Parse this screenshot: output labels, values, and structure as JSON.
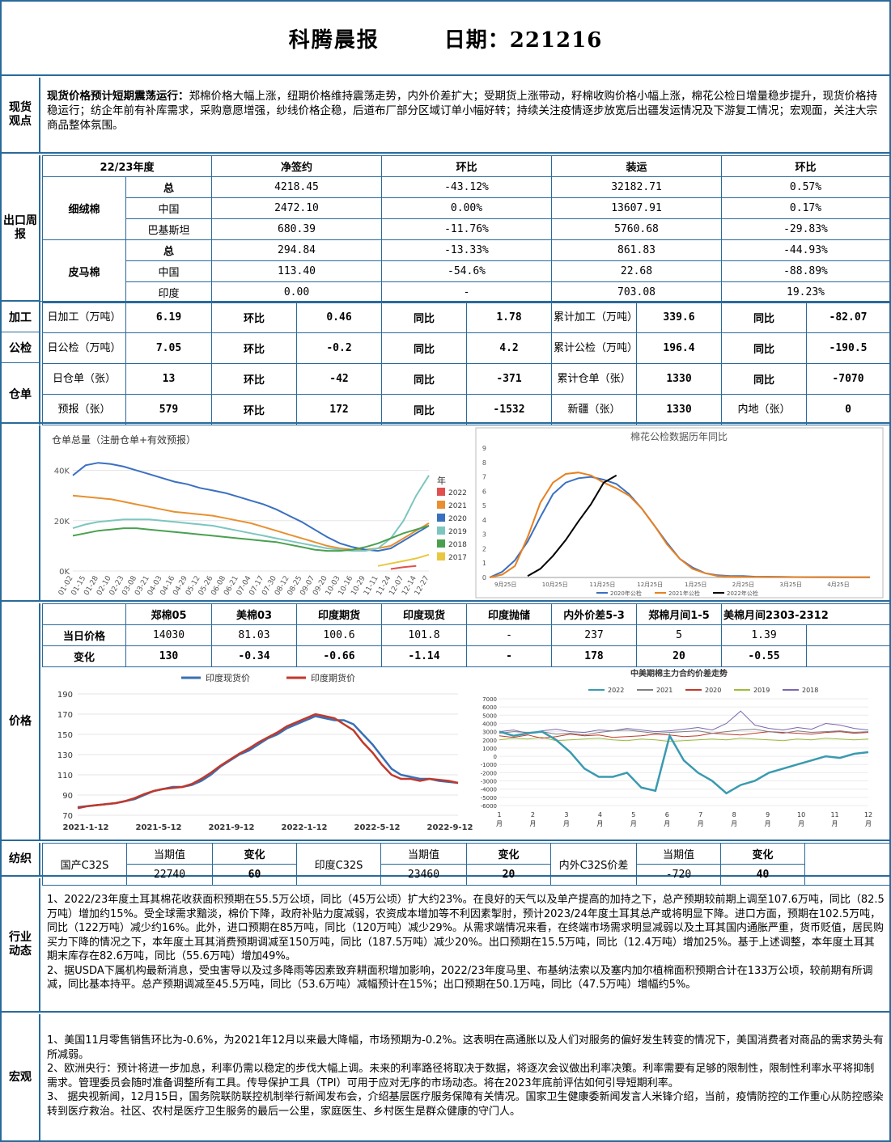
{
  "header": {
    "title": "科腾晨报",
    "date": "日期：221216"
  },
  "viewpoint": {
    "label": "现货观点",
    "lead": "现货价格预计短期震荡运行：",
    "body": "郑棉价格大幅上涨，纽期价格维持震荡走势，内外价差扩大；受期货上涨带动，籽棉收购价格小幅上涨，棉花公检日增量稳步提升，现货价格持稳运行；纺企年前有补库需求，采购意愿增强，纱线价格企稳，后道布厂部分区域订单小幅好转；持续关注疫情逐步放宽后出疆发运情况及下游复工情况；宏观面，关注大宗商品整体氛围。"
  },
  "export": {
    "label": "出口周报",
    "headers": [
      "22/23年度",
      "净签约",
      "环比",
      "装运",
      "环比"
    ],
    "groups": [
      {
        "name": "细绒棉",
        "rows": [
          {
            "sub": "总",
            "net": "4218.45",
            "net_mom": "-43.12%",
            "ship": "32182.71",
            "ship_mom": "0.57%"
          },
          {
            "sub": "中国",
            "net": "2472.10",
            "net_mom": "0.00%",
            "ship": "13607.91",
            "ship_mom": "0.17%"
          },
          {
            "sub": "巴基斯坦",
            "net": "680.39",
            "net_mom": "-11.76%",
            "ship": "5760.68",
            "ship_mom": "-29.83%"
          }
        ]
      },
      {
        "name": "皮马棉",
        "rows": [
          {
            "sub": "总",
            "net": "294.84",
            "net_mom": "-13.33%",
            "ship": "861.83",
            "ship_mom": "-44.93%"
          },
          {
            "sub": "中国",
            "net": "113.40",
            "net_mom": "-54.6%",
            "ship": "22.68",
            "ship_mom": "-88.89%"
          },
          {
            "sub": "印度",
            "net": "0.00",
            "net_mom": "-",
            "ship": "703.08",
            "ship_mom": "19.23%"
          }
        ]
      }
    ]
  },
  "process": {
    "label": "加工",
    "c1": "日加工（万吨）",
    "v1": "6.19",
    "c2": "环比",
    "v2": "0.46",
    "c3": "同比",
    "v3": "1.78",
    "c4": "累计加工（万吨）",
    "v4": "339.6",
    "c5": "同比",
    "v5": "-82.07"
  },
  "inspect": {
    "label": "公检",
    "c1": "日公检（万吨）",
    "v1": "7.05",
    "c2": "环比",
    "v2": "-0.2",
    "c3": "同比",
    "v3": "4.2",
    "c4": "累计公检（万吨）",
    "v4": "196.4",
    "c5": "同比",
    "v5": "-190.5"
  },
  "warehouse": {
    "label": "仓单",
    "r1": {
      "c1": "日仓单（张）",
      "v1": "13",
      "c2": "环比",
      "v2": "-42",
      "c3": "同比",
      "v3": "-371",
      "c4": "累计仓单（张）",
      "v4": "1330",
      "c5": "同比",
      "v5": "-7070"
    },
    "r2": {
      "c1": "预报（张）",
      "v1": "579",
      "c2": "环比",
      "v2": "172",
      "c3": "同比",
      "v3": "-1532",
      "c4": "新疆（张）",
      "v4": "1330",
      "c5": "内地（张）",
      "v5": "0"
    }
  },
  "price": {
    "label": "价格",
    "headers": [
      "",
      "郑棉05",
      "美棉03",
      "印度期货",
      "印度现货",
      "印度抛储",
      "内外价差5-3",
      "郑棉月间1-5",
      "美棉月间2303-2312"
    ],
    "today_label": "当日价格",
    "today": [
      "14030",
      "81.03",
      "100.6",
      "101.8",
      "-",
      "237",
      "5",
      "1.39"
    ],
    "change_label": "变化",
    "change": [
      "130",
      "-0.34",
      "-0.66",
      "-1.14",
      "-",
      "178",
      "20",
      "-0.55"
    ]
  },
  "yarn": {
    "label": "纺织",
    "a_name": "国产C32S",
    "a_cur_h": "当期值",
    "a_chg_h": "变化",
    "a_cur": "22740",
    "a_chg": "60",
    "b_name": "印度C32S",
    "b_cur_h": "当期值",
    "b_chg_h": "变化",
    "b_cur": "23460",
    "b_chg": "20",
    "c_name": "内外C32S价差",
    "c_cur_h": "当期值",
    "c_chg_h": "变化",
    "c_cur": "-720",
    "c_chg": "40"
  },
  "industry": {
    "label": "行业动态",
    "p1": "1、2022/23年度土耳其棉花收获面积预期在55.5万公顷，同比（45万公顷）扩大约23%。在良好的天气以及单产提高的加持之下，总产预期较前期上调至107.6万吨，同比（82.5万吨）增加约15%。受全球需求黯淡，棉价下降，政府补贴力度减弱，农资成本增加等不利因素掣肘，预计2023/24年度土耳其总产或将明显下降。进口方面，预期在102.5万吨，同比（122万吨）减少约16%。此外，进口预期在85万吨，同比（120万吨）减少29%。从需求端情况来看，在终端市场需求明显减弱以及土耳其国内通胀严重，货币贬值，居民购买力下降的情况之下，本年度土耳其消费预期调减至150万吨，同比（187.5万吨）减少20%。出口预期在15.5万吨，同比（12.4万吨）增加25%。基于上述调整，本年度土耳其期末库存在82.6万吨，同比（55.6万吨）增加49%。",
    "p2": "2、据USDA下属机构最新消息，受虫害导以及过多降雨等因素致弃耕面积增加影响，2022/23年度马里、布基纳法索以及塞内加尔植棉面积预期合计在133万公顷，较前期有所调减，同比基本持平。总产预期调减至45.5万吨，同比（53.6万吨）减幅预计在15%；出口预期在50.1万吨，同比（47.5万吨）增幅约5%。"
  },
  "macro": {
    "label": "宏观",
    "p1": "1、美国11月零售销售环比为-0.6%，为2021年12月以来最大降幅，市场预期为-0.2%。这表明在高通胀以及人们对服务的偏好发生转变的情况下，美国消费者对商品的需求势头有所减弱。",
    "p2": "2、欧洲央行：预计将进一步加息，利率仍需以稳定的步伐大幅上调。未来的利率路径将取决于数据，将逐次会议做出利率决策。利率需要有足够的限制性，限制性利率水平将抑制需求。管理委员会随时准备调整所有工具。传导保护工具（TPI）可用于应对无序的市场动态。将在2023年底前评估如何引导短期利率。",
    "p3": "3、 据央视新闻，12月15日，国务院联防联控机制举行新闻发布会，介绍基层医疗服务保障有关情况。国家卫生健康委新闻发言人米锋介绍，当前，疫情防控的工作重心从防控感染转到医疗救治。社区、农村是医疗卫生服务的最后一公里，家庭医生、乡村医生是群众健康的守门人。"
  },
  "chart_data": [
    {
      "type": "line",
      "title": "仓单总量（注册仓单+有效预报）",
      "legend_title": "年",
      "categories": [
        "01-02",
        "01-15",
        "01-28",
        "02-10",
        "02-23",
        "03-08",
        "03-21",
        "04-03",
        "04-16",
        "04-29",
        "05-12",
        "05-26",
        "06-08",
        "06-21",
        "07-04",
        "07-17",
        "07-30",
        "08-12",
        "08-25",
        "09-07",
        "09-20",
        "10-03",
        "10-16",
        "10-29",
        "11-11",
        "11-24",
        "12-07",
        "12-14",
        "12-27"
      ],
      "ytick_labels": [
        "0K",
        "20K",
        "40K"
      ],
      "ylim": [
        0,
        45000
      ],
      "colors": [
        "#e05050",
        "#e89030",
        "#3a70c0",
        "#7cc6c0",
        "#4aa050",
        "#e8c840"
      ],
      "series": [
        {
          "name": "2022",
          "values": [
            null,
            null,
            null,
            null,
            null,
            null,
            null,
            null,
            null,
            null,
            null,
            null,
            null,
            null,
            null,
            null,
            null,
            null,
            null,
            null,
            null,
            null,
            null,
            null,
            null,
            800,
            1500,
            2000,
            null
          ]
        },
        {
          "name": "2021",
          "values": [
            30000,
            29500,
            29000,
            28500,
            27500,
            26500,
            25500,
            24500,
            23500,
            23000,
            22500,
            22000,
            21000,
            20000,
            19000,
            17500,
            16000,
            14500,
            13000,
            11500,
            10000,
            9000,
            8500,
            8500,
            9000,
            10000,
            13000,
            16000,
            19000
          ]
        },
        {
          "name": "2020",
          "values": [
            38000,
            42000,
            43000,
            42500,
            41500,
            40000,
            38500,
            37000,
            35500,
            34500,
            33000,
            32000,
            31000,
            29500,
            28000,
            26500,
            24500,
            22000,
            19500,
            16500,
            13500,
            11000,
            9500,
            8500,
            8000,
            9000,
            12000,
            15000,
            18000
          ]
        },
        {
          "name": "2019",
          "values": [
            17000,
            18500,
            19500,
            20000,
            20500,
            20500,
            20500,
            20000,
            19500,
            19000,
            18500,
            18000,
            17000,
            16000,
            15000,
            14000,
            13000,
            12000,
            11000,
            10000,
            9000,
            8500,
            8000,
            8000,
            9000,
            13000,
            20000,
            30000,
            38000
          ]
        },
        {
          "name": "2018",
          "values": [
            14000,
            15000,
            16000,
            16500,
            17000,
            17000,
            16500,
            16000,
            15500,
            15000,
            14500,
            14000,
            13500,
            13000,
            12500,
            12000,
            11500,
            10500,
            9500,
            8500,
            8000,
            8000,
            8500,
            9500,
            11000,
            13000,
            15000,
            16500,
            18000
          ]
        },
        {
          "name": "2017",
          "values": [
            null,
            null,
            null,
            null,
            null,
            null,
            null,
            null,
            null,
            null,
            null,
            null,
            null,
            null,
            null,
            null,
            null,
            null,
            null,
            null,
            null,
            null,
            null,
            null,
            2000,
            3000,
            4000,
            5000,
            6500
          ]
        }
      ]
    },
    {
      "type": "line",
      "title": "棉花公检数据历年同比",
      "yticks": [
        0,
        1,
        2,
        3,
        4,
        5,
        6,
        7,
        8,
        9
      ],
      "ylim": [
        0,
        9
      ],
      "xtick_labels": [
        "9月25日",
        "10月25日",
        "11月25日",
        "12月25日",
        "1月25日",
        "2月25日",
        "3月25日",
        "4月25日"
      ],
      "series": [
        {
          "name": "2020年公检",
          "color": "#3a70c0",
          "values": [
            0,
            0.4,
            1.2,
            2.5,
            4.2,
            5.8,
            6.6,
            6.9,
            7.0,
            6.8,
            6.5,
            5.8,
            4.8,
            3.6,
            2.4,
            1.3,
            0.7,
            0.3,
            0.15,
            0.1,
            0.1,
            0.05,
            0.05,
            0.04,
            0.03,
            0.02,
            0.02,
            0.02,
            0.01,
            0.01,
            0.01
          ]
        },
        {
          "name": "2021年公检",
          "color": "#e88020",
          "values": [
            0,
            0.2,
            0.8,
            2.8,
            5.2,
            6.6,
            7.2,
            7.3,
            7.1,
            6.6,
            6.2,
            5.7,
            4.8,
            3.6,
            2.3,
            1.3,
            0.6,
            0.3,
            0.1,
            0.06,
            0.04,
            0.03,
            0.02,
            0.02,
            0.02,
            0.02,
            0.01,
            0.01,
            0.01,
            0.01,
            0.01
          ]
        },
        {
          "name": "2022年公检",
          "color": "#000000",
          "values": [
            null,
            null,
            null,
            0.1,
            0.6,
            1.5,
            2.6,
            3.9,
            5.1,
            6.6,
            7.1,
            null,
            null,
            null,
            null,
            null,
            null,
            null,
            null,
            null,
            null,
            null,
            null,
            null,
            null,
            null,
            null,
            null,
            null,
            null,
            null
          ]
        }
      ]
    },
    {
      "type": "line",
      "title": "",
      "legend": [
        "印度现货价",
        "印度期货价"
      ],
      "yticks": [
        70,
        90,
        110,
        130,
        150,
        170,
        190
      ],
      "ylim": [
        70,
        190
      ],
      "xtick_labels": [
        "2021-1-12",
        "2021-5-12",
        "2021-9-12",
        "2022-1-12",
        "2022-5-12",
        "2022-9-12"
      ],
      "series": [
        {
          "name": "印度现货价",
          "color": "#3a6fb5",
          "values": [
            78,
            79,
            80,
            81,
            82,
            84,
            86,
            90,
            94,
            96,
            98,
            98,
            100,
            104,
            110,
            118,
            124,
            130,
            134,
            140,
            146,
            150,
            156,
            160,
            164,
            168,
            166,
            164,
            164,
            160,
            150,
            140,
            128,
            116,
            110,
            108,
            106,
            106,
            104,
            103,
            102
          ]
        },
        {
          "name": "印度期货价",
          "color": "#c0392b",
          "values": [
            77,
            79,
            80,
            81,
            82,
            84,
            87,
            91,
            94,
            96,
            97,
            98,
            101,
            106,
            112,
            119,
            125,
            131,
            136,
            142,
            147,
            152,
            158,
            162,
            166,
            170,
            168,
            166,
            160,
            154,
            142,
            132,
            120,
            110,
            106,
            106,
            104,
            106,
            105,
            104,
            102
          ]
        }
      ]
    },
    {
      "type": "line",
      "title": "中美期棉主力合约价差走势",
      "yticks": [
        -6000,
        -5000,
        -4000,
        -3000,
        -2000,
        -1000,
        0,
        1000,
        2000,
        3000,
        4000,
        5000,
        6000,
        7000
      ],
      "ylim": [
        -6000,
        7000
      ],
      "xtick_labels": [
        "1月",
        "2月",
        "3月",
        "4月",
        "5月",
        "6月",
        "7月",
        "8月",
        "9月",
        "10月",
        "11月",
        "12月"
      ],
      "series": [
        {
          "name": "2022",
          "color": "#3a9ab0",
          "values": [
            3000,
            2500,
            2800,
            3000,
            2000,
            500,
            -1500,
            -2500,
            -2500,
            -2000,
            -3800,
            -4200,
            2500,
            -500,
            -2000,
            -3000,
            -4500,
            -3500,
            -3000,
            -2000,
            -1500,
            -1000,
            -500,
            0,
            -200,
            300,
            500
          ]
        },
        {
          "name": "2021",
          "color": "#7f7f7f",
          "values": [
            2800,
            3000,
            2900,
            3000,
            2700,
            2800,
            2600,
            2900,
            3100,
            3200,
            3000,
            2800,
            2900,
            3000,
            3100,
            2800,
            3000,
            3200,
            3300,
            3000,
            2800,
            3100,
            2900,
            3000,
            3100,
            2900,
            3000
          ]
        },
        {
          "name": "2020",
          "color": "#c0392b",
          "values": [
            2500,
            2300,
            2600,
            2200,
            2400,
            2700,
            2500,
            2600,
            2300,
            2400,
            2500,
            2700,
            2600,
            2400,
            2500,
            2800,
            2700,
            2600,
            2800,
            3000,
            2900,
            2800,
            2700,
            2900,
            3000,
            2800,
            2900
          ]
        },
        {
          "name": "2019",
          "color": "#9cbd3c",
          "values": [
            2000,
            2200,
            2100,
            2300,
            1900,
            2000,
            2100,
            2200,
            2000,
            1900,
            2100,
            2000,
            1800,
            1900,
            2000,
            2100,
            2000,
            2200,
            2100,
            2000,
            1900,
            2100,
            2000,
            2200,
            2100,
            2000,
            2100
          ]
        },
        {
          "name": "2018",
          "color": "#7b66b0",
          "values": [
            3000,
            3200,
            2800,
            3100,
            3300,
            3000,
            2900,
            3200,
            3100,
            3400,
            3200,
            3000,
            3100,
            3300,
            3500,
            3200,
            4000,
            5500,
            3800,
            3400,
            3200,
            3500,
            3300,
            4000,
            3800,
            3400,
            3200
          ]
        }
      ]
    }
  ]
}
